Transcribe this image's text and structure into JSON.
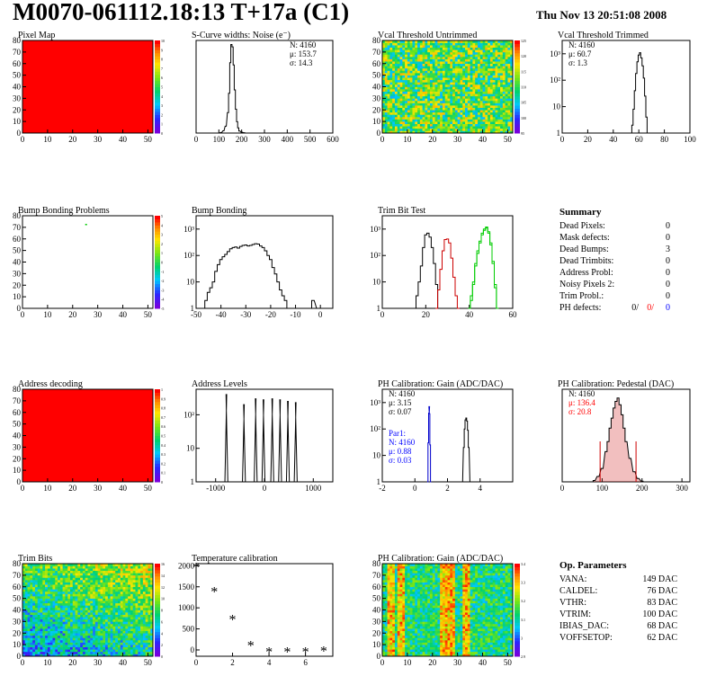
{
  "header": {
    "title": "M0070-061112.18:13 T+17a (C1)",
    "date": "Thu Nov 13 20:51:08 2008"
  },
  "colors": {
    "hist_black": "#000000",
    "hist_red": "#cc0000",
    "hist_green": "#00cc00",
    "hist_blue": "#0000cc",
    "map_red": "#ff0000",
    "stat_red": "#ff0000",
    "stat_blue": "#0000ff"
  },
  "chart_data": [
    {
      "id": "pixel-map",
      "type": "heatmap",
      "title": "Pixel Map",
      "xlim": [
        0,
        52
      ],
      "ylim": [
        0,
        80
      ],
      "xticks": [
        "0",
        "10",
        "20",
        "30",
        "40",
        "50"
      ],
      "yticks": [
        "0",
        "10",
        "20",
        "30",
        "40",
        "50",
        "60",
        "70",
        "80"
      ],
      "fill": "uniform red",
      "zticks": [
        "0",
        "1",
        "2",
        "3",
        "4",
        "5",
        "6",
        "7",
        "8",
        "9",
        "10"
      ]
    },
    {
      "id": "s-curve-widths",
      "type": "bar",
      "title": "S-Curve widths: Noise (e⁻)",
      "xlim": [
        0,
        600
      ],
      "ylim": [
        0,
        800
      ],
      "xticks": [
        "0",
        "100",
        "200",
        "300",
        "400",
        "500",
        "600"
      ],
      "yticks": [],
      "stats": {
        "n": "N: 4160",
        "mean": "μ: 153.7",
        "sigma": "σ: 14.3"
      },
      "x": [
        100,
        110,
        120,
        130,
        140,
        145,
        150,
        155,
        160,
        165,
        170,
        175,
        180,
        185,
        190,
        200,
        210,
        220
      ],
      "values": [
        0,
        5,
        20,
        60,
        180,
        350,
        620,
        780,
        760,
        600,
        380,
        210,
        100,
        45,
        18,
        8,
        3,
        0
      ]
    },
    {
      "id": "vcal-untrimmed",
      "type": "heatmap",
      "title": "Vcal Threshold Untrimmed",
      "xlim": [
        0,
        52
      ],
      "ylim": [
        0,
        80
      ],
      "xticks": [
        "0",
        "10",
        "20",
        "30",
        "40",
        "50"
      ],
      "yticks": [
        "0",
        "10",
        "20",
        "30",
        "40",
        "50",
        "60",
        "70",
        "80"
      ],
      "zticks": [
        "95",
        "100",
        "105",
        "110",
        "115",
        "120",
        "125"
      ]
    },
    {
      "id": "vcal-trimmed",
      "type": "bar",
      "title": "Vcal Threshold Trimmed",
      "log_y": true,
      "xlim": [
        0,
        100
      ],
      "xticks": [
        "0",
        "20",
        "40",
        "60",
        "80",
        "100"
      ],
      "yticks": [
        "1",
        "10",
        "10²",
        "10³"
      ],
      "stats": {
        "n": "N: 4160",
        "mean": "μ: 60.7",
        "sigma": "σ:   1.3"
      },
      "x": [
        55,
        56,
        57,
        58,
        59,
        60,
        61,
        62,
        63,
        64,
        65,
        66
      ],
      "values": [
        2,
        8,
        40,
        180,
        500,
        900,
        1100,
        700,
        350,
        120,
        25,
        4
      ]
    },
    {
      "id": "bump-bonding-problems",
      "type": "heatmap",
      "title": "Bump Bonding Problems",
      "xlim": [
        0,
        52
      ],
      "ylim": [
        0,
        80
      ],
      "xticks": [
        "0",
        "10",
        "20",
        "30",
        "40",
        "50"
      ],
      "yticks": [
        "0",
        "10",
        "20",
        "30",
        "40",
        "50",
        "60",
        "70",
        "80"
      ],
      "zticks": [
        "-5",
        "-4",
        "-3",
        "-2",
        "-1",
        "0",
        "1",
        "2",
        "3",
        "4",
        "5"
      ],
      "marked_pixels": [
        [
          25,
          73
        ]
      ]
    },
    {
      "id": "bump-bonding",
      "type": "bar",
      "title": "Bump Bonding",
      "log_y": true,
      "xlim": [
        -50,
        5
      ],
      "xticks": [
        "-50",
        "-40",
        "-30",
        "-20",
        "-10",
        "0"
      ],
      "yticks": [
        "1",
        "10",
        "10²",
        "10³"
      ],
      "x": [
        -47,
        -46,
        -45,
        -44,
        -43,
        -42,
        -41,
        -40,
        -39,
        -38,
        -37,
        -36,
        -35,
        -34,
        -33,
        -32,
        -31,
        -30,
        -29,
        -28,
        -27,
        -26,
        -25,
        -24,
        -23,
        -22,
        -21,
        -20,
        -19,
        -18,
        -17,
        -16,
        -15,
        -14,
        -13,
        -4,
        -3,
        -1,
        0
      ],
      "values": [
        1,
        2,
        4,
        6,
        10,
        25,
        45,
        70,
        90,
        110,
        140,
        180,
        200,
        210,
        190,
        220,
        240,
        250,
        230,
        240,
        260,
        280,
        270,
        230,
        200,
        150,
        100,
        70,
        35,
        20,
        10,
        5,
        3,
        2,
        1,
        1,
        2,
        1,
        1
      ]
    },
    {
      "id": "trim-bit-test",
      "type": "line",
      "title": "Trim Bit Test",
      "log_y": true,
      "xlim": [
        0,
        60
      ],
      "xticks": [
        "0",
        "20",
        "40",
        "60"
      ],
      "yticks": [
        "1",
        "10",
        "10²",
        "10³"
      ],
      "series": [
        {
          "x": [
            15,
            16,
            17,
            18,
            19,
            20,
            21,
            22,
            23,
            24,
            25,
            26
          ],
          "values": [
            1,
            3,
            10,
            40,
            200,
            600,
            700,
            500,
            200,
            50,
            8,
            1
          ]
        },
        {
          "x": [
            25,
            26,
            27,
            28,
            29,
            30,
            31,
            32,
            33,
            34,
            35
          ],
          "values": [
            1,
            5,
            30,
            150,
            400,
            420,
            300,
            80,
            15,
            3,
            1
          ]
        },
        {
          "x": [
            40,
            41,
            42,
            43,
            44,
            45,
            46,
            47,
            48,
            49,
            50,
            51,
            52,
            53
          ],
          "values": [
            1,
            2,
            8,
            40,
            120,
            300,
            600,
            900,
            1100,
            800,
            300,
            60,
            8,
            1
          ]
        },
        {
          "x": [
            40,
            41,
            42,
            43,
            44,
            45,
            46,
            47,
            48,
            49,
            50,
            51,
            52,
            53
          ],
          "values": [
            1,
            3,
            10,
            50,
            150,
            350,
            700,
            1000,
            1200,
            700,
            250,
            50,
            6,
            1
          ]
        }
      ]
    },
    {
      "id": "summary",
      "title": "Summary",
      "rows": [
        {
          "label": "Dead Pixels:",
          "value": "0"
        },
        {
          "label": "Mask defects:",
          "value": "0"
        },
        {
          "label": "Dead Bumps:",
          "value": "3"
        },
        {
          "label": "Dead Trimbits:",
          "value": "0"
        },
        {
          "label": "Address Probl:",
          "value": "0"
        },
        {
          "label": "Noisy Pixels 2:",
          "value": "0"
        },
        {
          "label": "Trim Probl.:",
          "value": "0"
        }
      ],
      "ph_defects": {
        "label": "PH defects:",
        "v1": "0/",
        "v2": "0/",
        "v3": "0"
      }
    },
    {
      "id": "address-decoding",
      "type": "heatmap",
      "title": "Address decoding",
      "xlim": [
        0,
        52
      ],
      "ylim": [
        0,
        80
      ],
      "xticks": [
        "0",
        "10",
        "20",
        "30",
        "40",
        "50"
      ],
      "yticks": [
        "0",
        "10",
        "20",
        "30",
        "40",
        "50",
        "60",
        "70",
        "80"
      ],
      "fill": "uniform red",
      "zticks": [
        "0",
        "0.1",
        "0.2",
        "0.3",
        "0.4",
        "0.5",
        "0.6",
        "0.7",
        "0.8",
        "0.9",
        "1"
      ]
    },
    {
      "id": "address-levels",
      "type": "bar",
      "title": "Address Levels",
      "log_y": true,
      "xlim": [
        -1400,
        1400
      ],
      "xticks": [
        "-1000",
        "0",
        "1000"
      ],
      "yticks": [
        "1",
        "10",
        "10²"
      ],
      "x": [
        -780,
        -420,
        -180,
        -20,
        160,
        320,
        480,
        640
      ],
      "values": [
        400,
        200,
        300,
        280,
        300,
        280,
        250,
        230
      ]
    },
    {
      "id": "ph-gain",
      "type": "bar",
      "title": "PH Calibration: Gain (ADC/DAC)",
      "log_y": true,
      "xlim": [
        -2,
        6
      ],
      "xticks": [
        "-2",
        "0",
        "2",
        "4"
      ],
      "yticks": [
        "1",
        "10",
        "10²",
        "10³"
      ],
      "stats": {
        "n": "N: 4160",
        "mean": "μ: 3.15",
        "sigma": "σ: 0.07"
      },
      "stats2": {
        "title": "Par1:",
        "n": "N: 4160",
        "mean": "μ: 0.88",
        "sigma": "σ: 0.03"
      },
      "series": [
        {
          "x": [
            2.9,
            3.0,
            3.05,
            3.1,
            3.15,
            3.2,
            3.25,
            3.3,
            3.4
          ],
          "values": [
            1,
            20,
            100,
            220,
            260,
            200,
            90,
            20,
            1
          ]
        },
        {
          "x": [
            0.78,
            0.82,
            0.86,
            0.88,
            0.9,
            0.94,
            0.98
          ],
          "values": [
            1,
            30,
            400,
            700,
            380,
            25,
            1
          ]
        }
      ]
    },
    {
      "id": "ph-pedestal",
      "type": "bar",
      "title": "PH Calibration: Pedestal (DAC)",
      "xlim": [
        0,
        320
      ],
      "xticks": [
        "0",
        "100",
        "200",
        "300"
      ],
      "yticks": [],
      "stats": {
        "n": "N: 4160",
        "mean": "μ: 136.4",
        "sigma": "σ: 20.8"
      },
      "x": [
        80,
        90,
        100,
        110,
        115,
        120,
        125,
        130,
        135,
        140,
        145,
        150,
        155,
        160,
        170,
        180,
        190,
        200
      ],
      "values": [
        2,
        8,
        20,
        45,
        60,
        80,
        95,
        110,
        120,
        125,
        115,
        100,
        80,
        60,
        35,
        15,
        5,
        1
      ]
    },
    {
      "id": "trim-bits",
      "type": "heatmap",
      "title": "Trim Bits",
      "xlim": [
        0,
        52
      ],
      "ylim": [
        0,
        80
      ],
      "xticks": [
        "0",
        "10",
        "20",
        "30",
        "40",
        "50"
      ],
      "yticks": [
        "0",
        "10",
        "20",
        "30",
        "40",
        "50",
        "60",
        "70",
        "80"
      ],
      "zticks": [
        "0",
        "2",
        "4",
        "6",
        "8",
        "10",
        "12",
        "14",
        "16"
      ]
    },
    {
      "id": "temperature-calibration",
      "type": "scatter",
      "title": "Temperature calibration",
      "xlim": [
        0,
        7.5
      ],
      "ylim": [
        -150,
        2050
      ],
      "xticks": [
        "0",
        "2",
        "4",
        "6"
      ],
      "yticks": [
        "0",
        "500",
        "1000",
        "1500",
        "2000"
      ],
      "x": [
        0,
        1,
        2,
        3,
        4,
        5,
        6,
        7
      ],
      "values": [
        1950,
        1380,
        720,
        100,
        -50,
        -50,
        -50,
        -30
      ]
    },
    {
      "id": "ph-gain-map",
      "type": "heatmap",
      "title": "PH Calibration: Gain (ADC/DAC)",
      "xlim": [
        0,
        52
      ],
      "ylim": [
        0,
        80
      ],
      "xticks": [
        "0",
        "10",
        "20",
        "30",
        "40",
        "50"
      ],
      "yticks": [
        "0",
        "10",
        "20",
        "30",
        "40",
        "50",
        "60",
        "70",
        "80"
      ],
      "zticks": [
        "2.9",
        "3",
        "3.1",
        "3.2",
        "3.3",
        "3.4"
      ]
    }
  ],
  "op_parameters": {
    "title": "Op. Parameters",
    "rows": [
      {
        "label": "VANA:",
        "value": "149 DAC"
      },
      {
        "label": "CALDEL:",
        "value": "76 DAC"
      },
      {
        "label": "VTHR:",
        "value": "83 DAC"
      },
      {
        "label": "VTRIM:",
        "value": "100 DAC"
      },
      {
        "label": "IBIAS_DAC:",
        "value": "68 DAC"
      },
      {
        "label": "VOFFSETOP:",
        "value": "62 DAC"
      }
    ]
  }
}
